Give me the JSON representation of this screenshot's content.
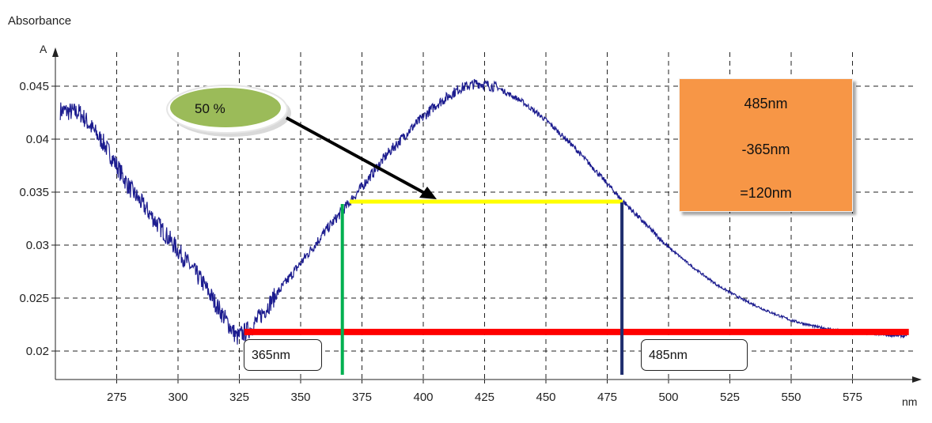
{
  "chart_data": {
    "type": "line",
    "title": "",
    "ylabel": "Absorbance",
    "ylabel_unit": "A",
    "xlabel": "nm",
    "xlim": [
      250,
      600
    ],
    "ylim": [
      0.018,
      0.0475
    ],
    "x_ticks": [
      275,
      300,
      325,
      350,
      375,
      400,
      425,
      450,
      475,
      500,
      525,
      550,
      575
    ],
    "y_ticks": [
      {
        "value": 0.02,
        "label": "0.02"
      },
      {
        "value": 0.025,
        "label": "0.025"
      },
      {
        "value": 0.03,
        "label": "0.03"
      },
      {
        "value": 0.035,
        "label": "0.035"
      },
      {
        "value": 0.04,
        "label": "0.04"
      },
      {
        "value": 0.045,
        "label": "0.045"
      }
    ],
    "grid": true,
    "series": [
      {
        "color": "#1c1c8f",
        "x": [
          252,
          260,
          270,
          280,
          290,
          300,
          310,
          318,
          324,
          330,
          340,
          350,
          360,
          368,
          375,
          385,
          395,
          405,
          415,
          422,
          430,
          440,
          450,
          460,
          470,
          480,
          490,
          500,
          510,
          520,
          530,
          540,
          550,
          560,
          570,
          580,
          590,
          597
        ],
        "y": [
          0.0427,
          0.0425,
          0.0395,
          0.0355,
          0.0325,
          0.0295,
          0.0265,
          0.0235,
          0.0213,
          0.0222,
          0.0253,
          0.0283,
          0.0313,
          0.0335,
          0.0355,
          0.0385,
          0.041,
          0.0432,
          0.0448,
          0.0453,
          0.0449,
          0.0436,
          0.0418,
          0.0396,
          0.0371,
          0.0345,
          0.0321,
          0.0298,
          0.0279,
          0.0262,
          0.0249,
          0.0238,
          0.0229,
          0.0223,
          0.0219,
          0.0217,
          0.0215,
          0.0214
        ]
      }
    ],
    "annotations": {
      "baseline": {
        "value": 0.0218,
        "x_start": 327,
        "x_end": 597,
        "color": "#ff0000"
      },
      "half_max_line": {
        "value": 0.0341,
        "x_start": 370,
        "x_end": 480,
        "color": "#ffff00"
      },
      "left_marker": {
        "x": 367,
        "color": "#00b050",
        "label": "365nm"
      },
      "right_marker": {
        "x": 481,
        "color": "#1f2d6e",
        "label": "485nm"
      },
      "percent_bubble": {
        "label": "50 %",
        "fill": "#9bbb59"
      },
      "result_box": {
        "line1": "485nm",
        "line2": "-365nm",
        "line3": "=120nm",
        "fill": "#f79646"
      }
    }
  }
}
